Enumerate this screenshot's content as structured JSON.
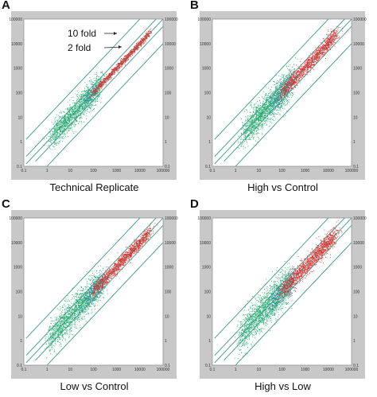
{
  "colors": {
    "frame": "#c8c8c8",
    "plot_bg": "#ffffff",
    "fold_lines": "#3a9a8a",
    "green_points": "#1fae6a",
    "blue_points": "#3c7fb8",
    "red_points": "#ee2222"
  },
  "chart_data": [
    {
      "type": "scatter",
      "panel_label": "A",
      "caption": "Technical Replicate",
      "scale": "log10",
      "xlim": [
        0.1,
        100000
      ],
      "ylim": [
        0.1,
        100000
      ],
      "x_ticks": [
        "0.1",
        "1",
        "10",
        "100",
        "1000",
        "10000",
        "100000"
      ],
      "y_ticks": [
        "0.1",
        "1",
        "10",
        "100",
        "1000",
        "10000",
        "100000"
      ],
      "fold_lines": [
        10,
        2,
        1,
        0.5,
        0.1
      ],
      "annotations": [
        "10 fold",
        "2 fold"
      ],
      "series": [
        {
          "color_key": "green_points",
          "x_log_range": [
            0.2,
            2.3
          ],
          "spread": 0.28,
          "n": 1600
        },
        {
          "color_key": "blue_points",
          "x_log_range": [
            1.6,
            2.2
          ],
          "spread": 0.16,
          "n": 120
        },
        {
          "color_key": "red_points",
          "x_log_range": [
            2.0,
            4.4
          ],
          "spread": 0.07,
          "n": 1100
        }
      ]
    },
    {
      "type": "scatter",
      "panel_label": "B",
      "caption": "High vs Control",
      "scale": "log10",
      "xlim": [
        0.1,
        100000
      ],
      "ylim": [
        0.1,
        100000
      ],
      "x_ticks": [
        "0.1",
        "1",
        "10",
        "100",
        "1000",
        "10000",
        "100000"
      ],
      "y_ticks": [
        "0.1",
        "1",
        "10",
        "100",
        "1000",
        "10000",
        "100000"
      ],
      "fold_lines": [
        10,
        2,
        1,
        0.5,
        0.1
      ],
      "annotations": [],
      "series": [
        {
          "color_key": "green_points",
          "x_log_range": [
            0.3,
            2.4
          ],
          "spread": 0.33,
          "n": 1700
        },
        {
          "color_key": "blue_points",
          "x_log_range": [
            1.5,
            2.5
          ],
          "spread": 0.25,
          "n": 300
        },
        {
          "color_key": "red_points",
          "x_log_range": [
            2.0,
            4.3
          ],
          "spread": 0.16,
          "n": 1300
        }
      ]
    },
    {
      "type": "scatter",
      "panel_label": "C",
      "caption": "Low vs Control",
      "scale": "log10",
      "xlim": [
        0.1,
        100000
      ],
      "ylim": [
        0.1,
        100000
      ],
      "x_ticks": [
        "0.1",
        "1",
        "10",
        "100",
        "1000",
        "10000",
        "100000"
      ],
      "y_ticks": [
        "0.1",
        "1",
        "10",
        "100",
        "1000",
        "10000",
        "100000"
      ],
      "fold_lines": [
        10,
        2,
        1,
        0.5,
        0.1
      ],
      "annotations": [],
      "series": [
        {
          "color_key": "green_points",
          "x_log_range": [
            0.1,
            2.4
          ],
          "spread": 0.32,
          "n": 1800
        },
        {
          "color_key": "blue_points",
          "x_log_range": [
            1.6,
            2.5
          ],
          "spread": 0.22,
          "n": 250
        },
        {
          "color_key": "red_points",
          "x_log_range": [
            2.0,
            4.4
          ],
          "spread": 0.13,
          "n": 1300
        }
      ]
    },
    {
      "type": "scatter",
      "panel_label": "D",
      "caption": "High vs Low",
      "scale": "log10",
      "xlim": [
        0.1,
        100000
      ],
      "ylim": [
        0.1,
        100000
      ],
      "x_ticks": [
        "0.1",
        "1",
        "10",
        "100",
        "1000",
        "10000",
        "100000"
      ],
      "y_ticks": [
        "0.1",
        "1",
        "10",
        "100",
        "1000",
        "10000",
        "100000"
      ],
      "fold_lines": [
        10,
        2,
        1,
        0.5,
        0.1
      ],
      "annotations": [],
      "series": [
        {
          "color_key": "green_points",
          "x_log_range": [
            0.2,
            2.4
          ],
          "spread": 0.36,
          "n": 1800
        },
        {
          "color_key": "blue_points",
          "x_log_range": [
            1.5,
            2.6
          ],
          "spread": 0.28,
          "n": 320
        },
        {
          "color_key": "red_points",
          "x_log_range": [
            2.0,
            4.3
          ],
          "spread": 0.2,
          "n": 1400
        }
      ]
    }
  ]
}
